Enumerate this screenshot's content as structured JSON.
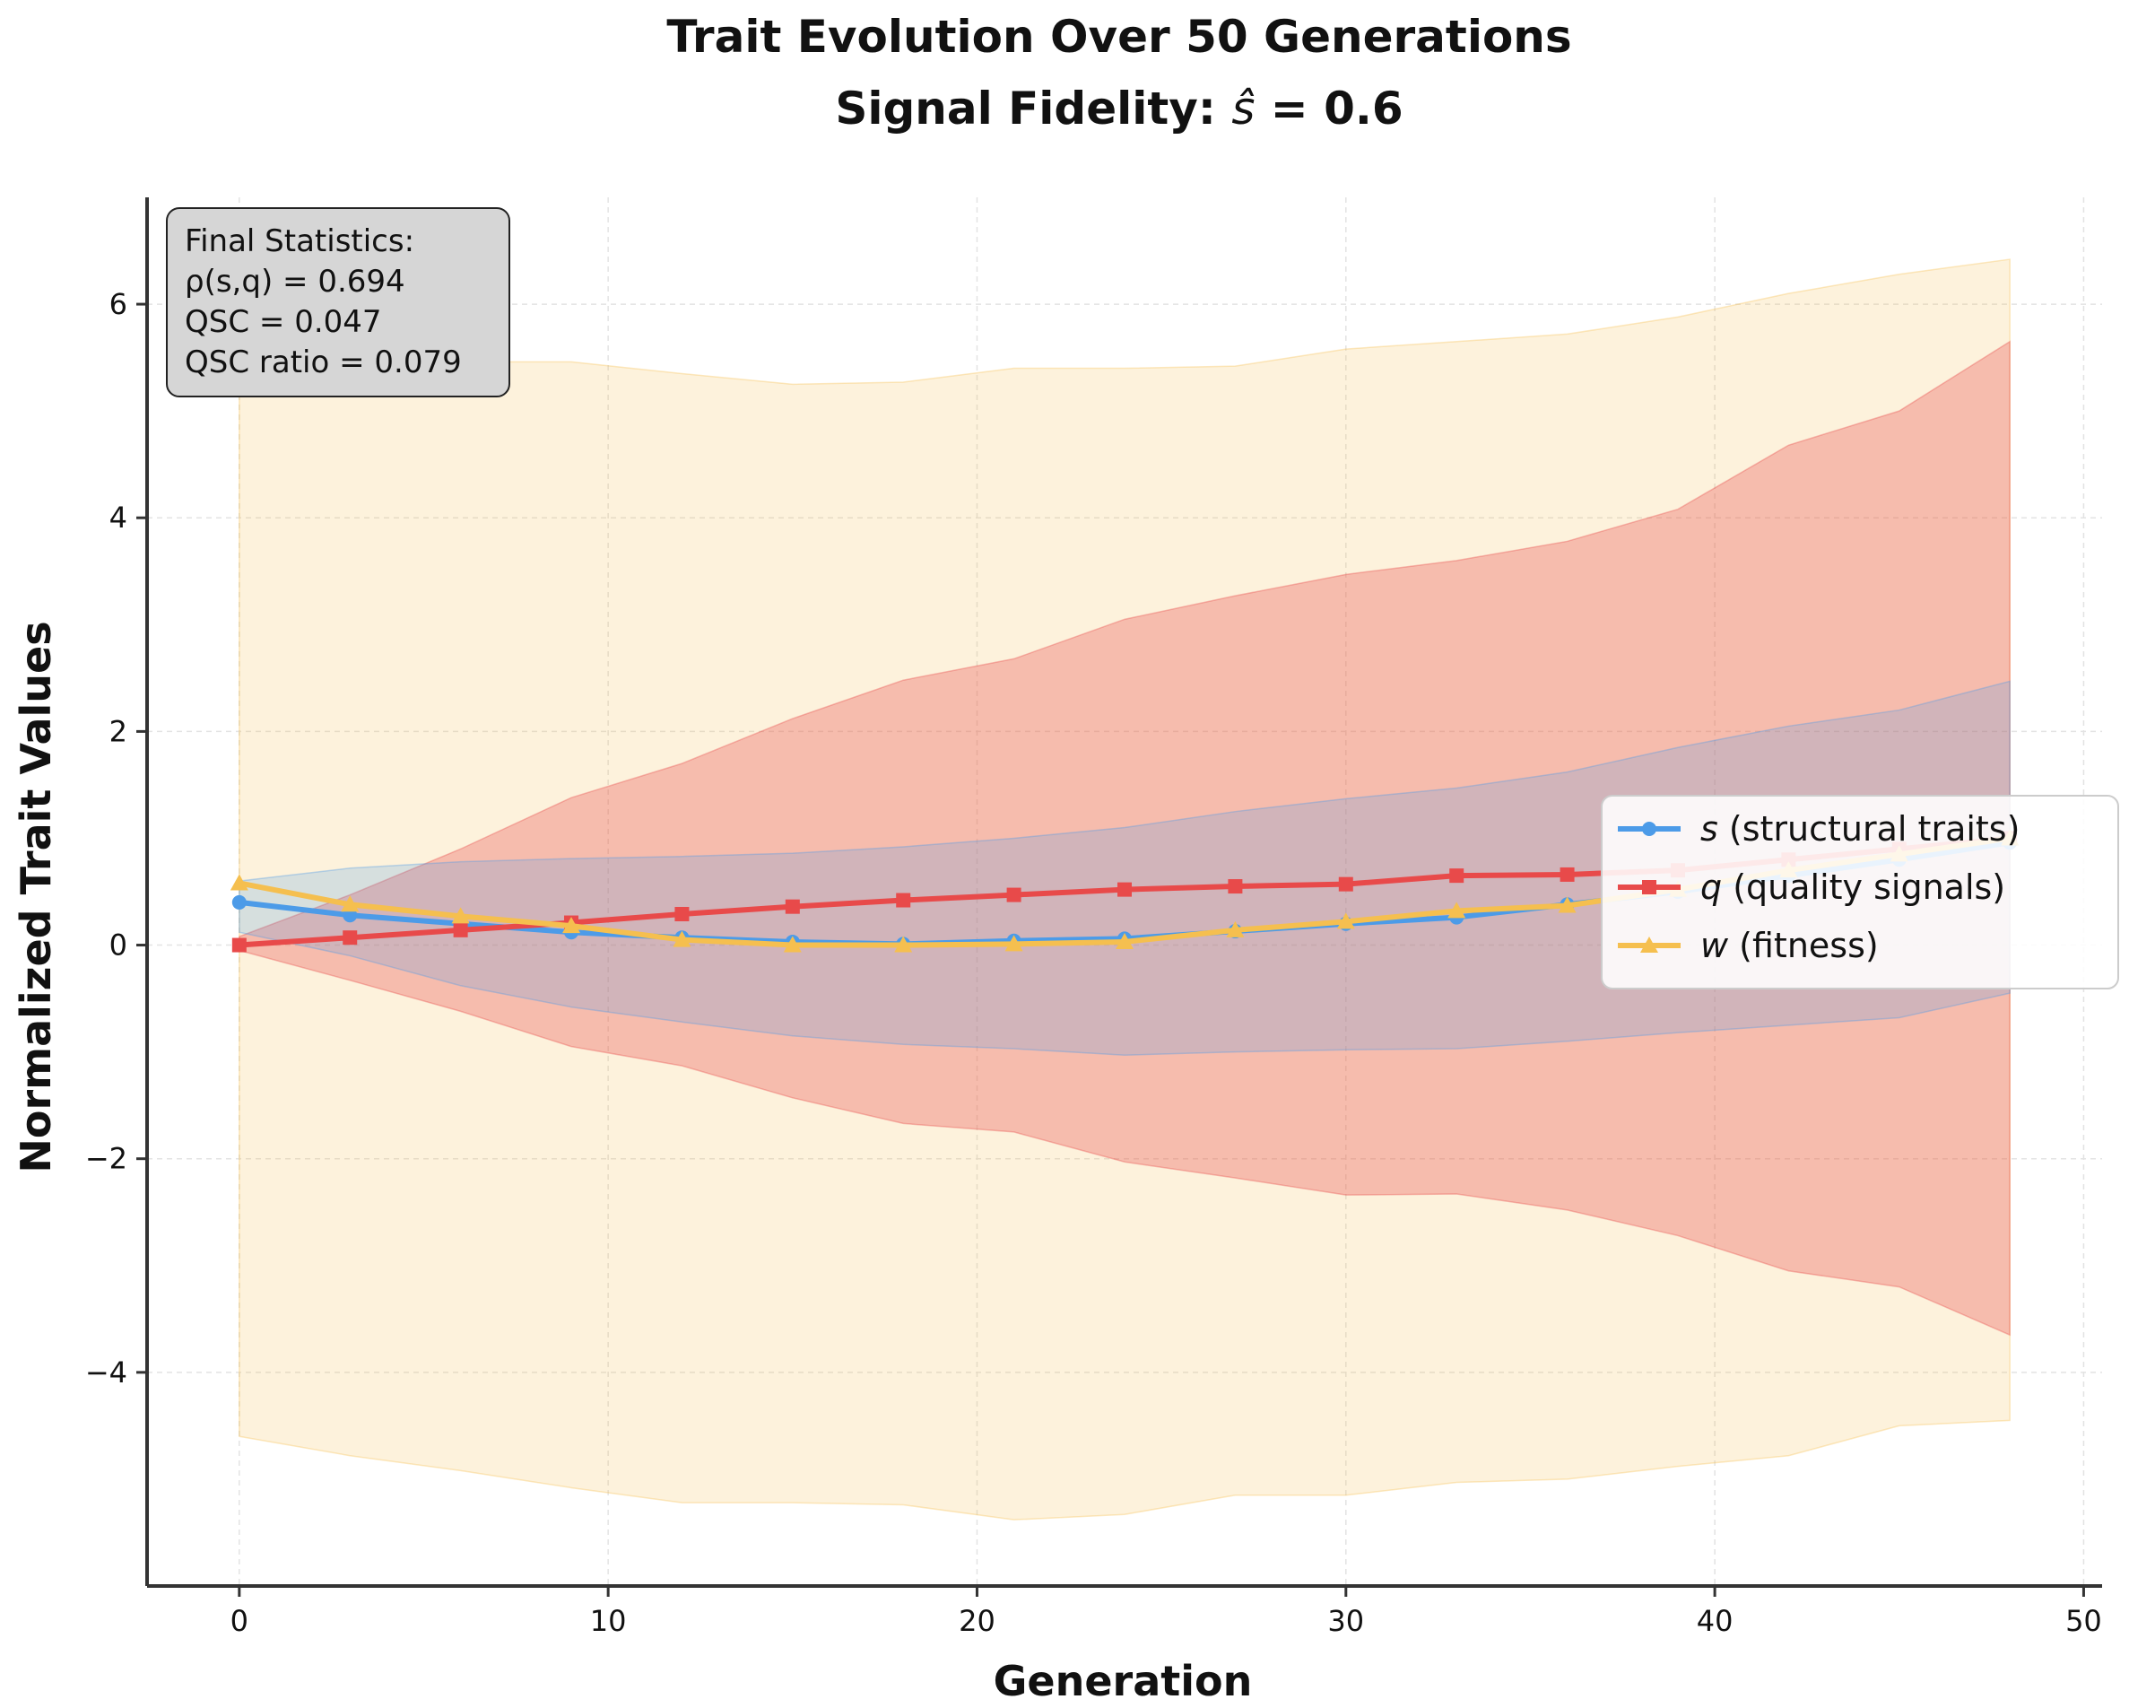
{
  "chart_data": {
    "type": "line",
    "title_line1": "Trait Evolution Over 50 Generations",
    "title_line2_prefix": "Signal Fidelity: ",
    "title_line2_symbol": "ŝ",
    "title_line2_suffix": " = 0.6",
    "xlabel": "Generation",
    "ylabel": "Normalized Trait Values",
    "xlim": [
      -2.5,
      50.5
    ],
    "ylim": [
      -6.0,
      7.0
    ],
    "xticks": [
      0,
      10,
      20,
      30,
      40,
      50
    ],
    "yticks": [
      -4,
      -2,
      0,
      2,
      4,
      6
    ],
    "ytick_labels": [
      "−4",
      "−2",
      "0",
      "2",
      "4",
      "6"
    ],
    "grid": true,
    "legend_position": "center-right",
    "x": [
      0,
      3,
      6,
      9,
      12,
      15,
      18,
      21,
      24,
      27,
      30,
      33,
      36,
      39,
      42,
      45,
      48
    ],
    "series": [
      {
        "symbol": "s",
        "name_rest": " (structural traits)",
        "color": "#4C9BE8",
        "marker": "circle",
        "values": [
          0.4,
          0.28,
          0.2,
          0.12,
          0.07,
          0.03,
          0.01,
          0.04,
          0.06,
          0.13,
          0.2,
          0.26,
          0.38,
          0.5,
          0.65,
          0.8,
          0.96
        ],
        "band_lower": [
          0.12,
          -0.1,
          -0.38,
          -0.58,
          -0.72,
          -0.85,
          -0.93,
          -0.97,
          -1.03,
          -1.0,
          -0.98,
          -0.97,
          -0.9,
          -0.82,
          -0.75,
          -0.68,
          -0.45
        ],
        "band_upper": [
          0.6,
          0.72,
          0.78,
          0.81,
          0.83,
          0.86,
          0.92,
          1.0,
          1.1,
          1.25,
          1.37,
          1.47,
          1.62,
          1.85,
          2.05,
          2.2,
          2.47
        ]
      },
      {
        "symbol": "q",
        "name_rest": " (quality signals)",
        "color": "#E84A4A",
        "marker": "square",
        "values": [
          0.0,
          0.07,
          0.14,
          0.21,
          0.29,
          0.36,
          0.42,
          0.47,
          0.52,
          0.55,
          0.57,
          0.65,
          0.66,
          0.7,
          0.8,
          0.9,
          1.0
        ],
        "band_lower": [
          -0.05,
          -0.33,
          -0.62,
          -0.95,
          -1.13,
          -1.43,
          -1.67,
          -1.75,
          -2.03,
          -2.18,
          -2.34,
          -2.33,
          -2.48,
          -2.72,
          -3.05,
          -3.2,
          -3.65
        ],
        "band_upper": [
          0.08,
          0.47,
          0.9,
          1.38,
          1.7,
          2.12,
          2.48,
          2.68,
          3.05,
          3.27,
          3.47,
          3.6,
          3.78,
          4.08,
          4.68,
          5.0,
          5.65
        ]
      },
      {
        "symbol": "w",
        "name_rest": " (fitness)",
        "color": "#F5BF4F",
        "marker": "triangle",
        "values": [
          0.58,
          0.38,
          0.27,
          0.18,
          0.05,
          0.0,
          0.0,
          0.01,
          0.03,
          0.14,
          0.22,
          0.32,
          0.37,
          0.52,
          0.7,
          0.85,
          1.0
        ],
        "band_lower": [
          -4.6,
          -4.78,
          -4.92,
          -5.08,
          -5.22,
          -5.22,
          -5.24,
          -5.38,
          -5.33,
          -5.15,
          -5.15,
          -5.03,
          -5.0,
          -4.88,
          -4.78,
          -4.5,
          -4.45
        ],
        "band_upper": [
          5.3,
          5.4,
          5.46,
          5.46,
          5.35,
          5.25,
          5.27,
          5.4,
          5.4,
          5.42,
          5.58,
          5.65,
          5.72,
          5.88,
          6.1,
          6.28,
          6.42
        ]
      }
    ],
    "stats_box": {
      "lines": [
        "Final Statistics:",
        "ρ(s,q) = 0.694",
        "QSC = 0.047",
        "QSC ratio = 0.079"
      ]
    }
  }
}
